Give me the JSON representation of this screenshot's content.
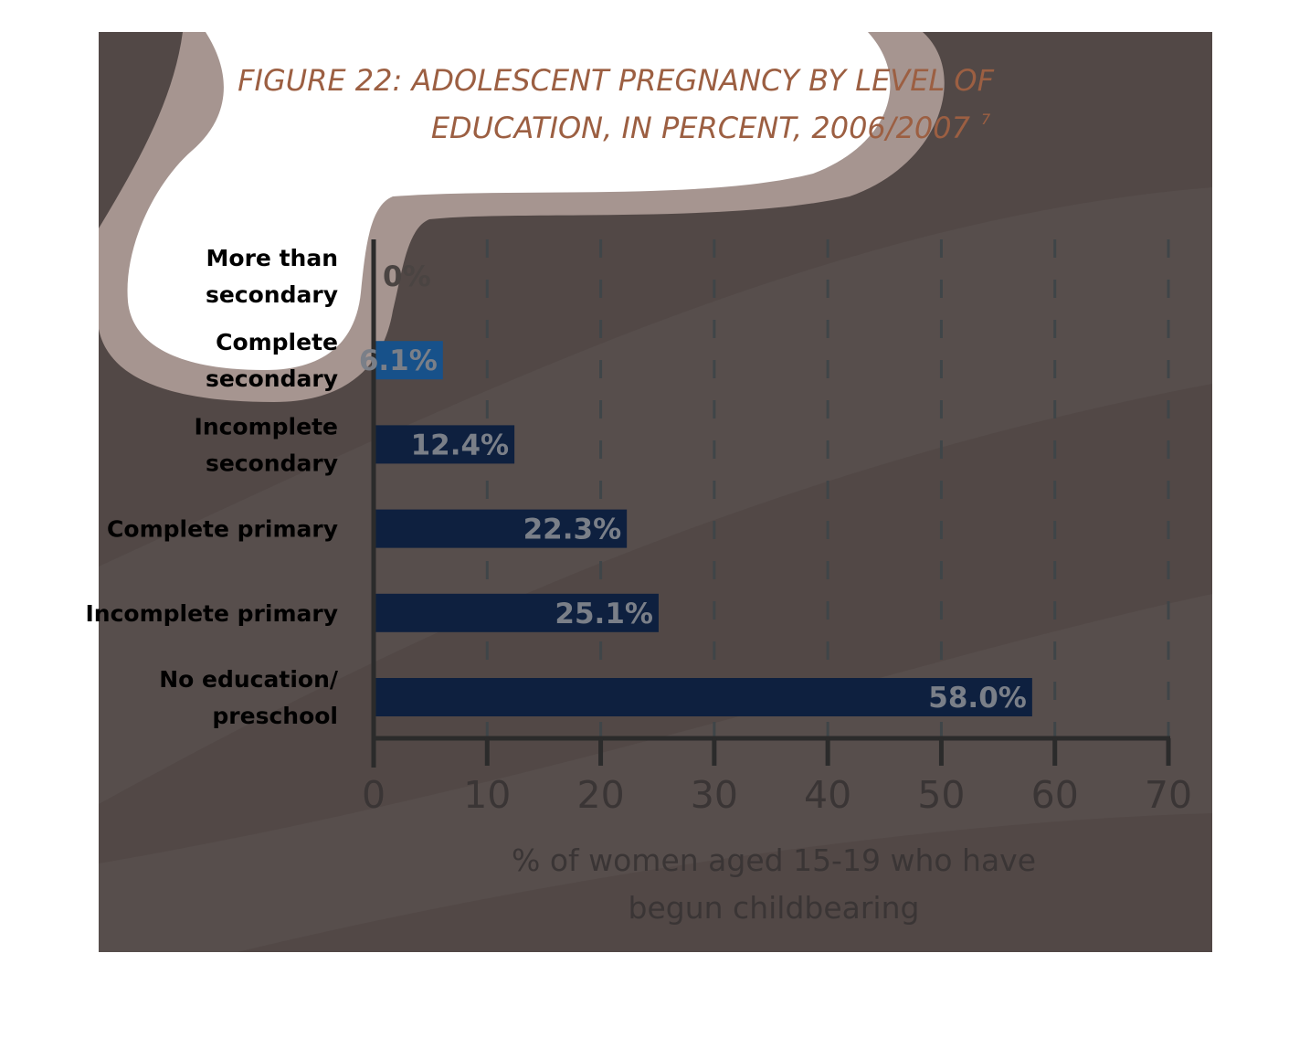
{
  "title_lines": [
    "FIGURE 22: ADOLESCENT PREGNANCY BY LEVEL OF",
    "EDUCATION, IN PERCENT, 2006/2007"
  ],
  "title_footnote": "7",
  "colors": {
    "background": "#524846",
    "bar": "#0e203f",
    "bar_highlight": "#17518a",
    "bar_label": "#7a7f88",
    "title": "#9c5f42",
    "category_label": "#000000",
    "axis": "#2b2b2b",
    "tick_label": "#3a3535",
    "cloud": "#ffffff",
    "cloud_border": "#a69590"
  },
  "chart_data": {
    "type": "bar",
    "orientation": "horizontal",
    "categories": [
      [
        "More than",
        "secondary"
      ],
      [
        "Complete",
        "secondary"
      ],
      [
        "Incomplete",
        "secondary"
      ],
      [
        "Complete primary"
      ],
      [
        "Incomplete primary"
      ],
      [
        "No education/",
        "preschool"
      ]
    ],
    "values": [
      0,
      6.1,
      12.4,
      22.3,
      25.1,
      58.0
    ],
    "value_labels": [
      "0%",
      "6.1%",
      "12.4%",
      "22.3%",
      "25.1%",
      "58.0%"
    ],
    "xlim": [
      0,
      70
    ],
    "xticks": [
      "0",
      "10",
      "20",
      "30",
      "40",
      "50",
      "60",
      "70"
    ],
    "xlabel_lines": [
      "% of women aged 15-19 who have",
      "begun childbearing"
    ],
    "grid": "vertical dashed"
  }
}
